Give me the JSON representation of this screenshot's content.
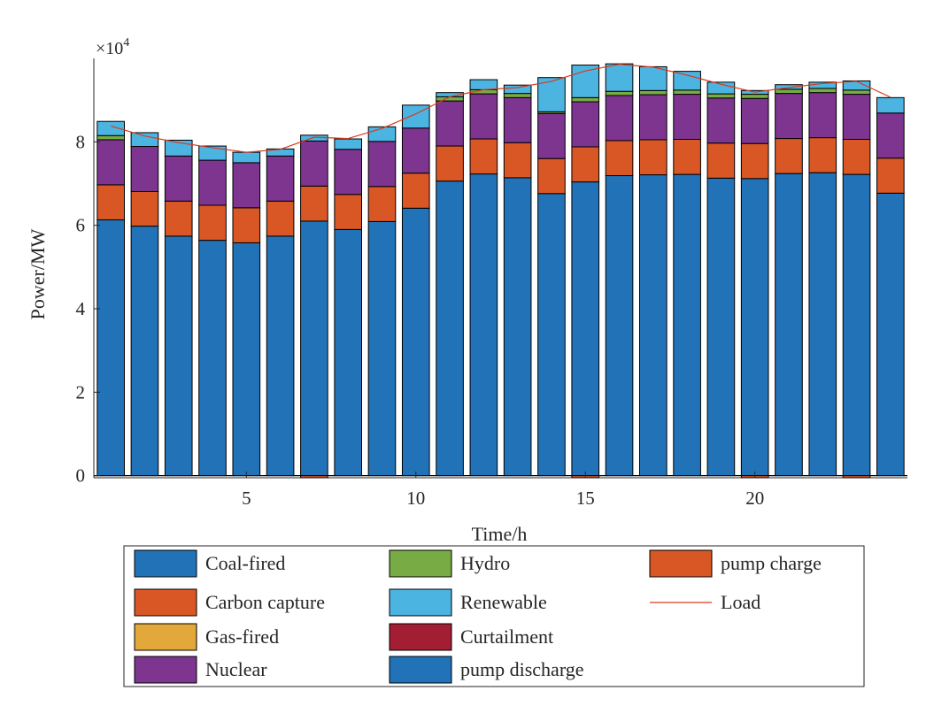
{
  "chart_data": {
    "type": "bar",
    "stacked": true,
    "xlabel": "Time/h",
    "ylabel": "Power/MW",
    "exponent_label": "×10",
    "exponent_power": "4",
    "scale": 10000,
    "xlim": [
      0.5,
      24.5
    ],
    "ylim": [
      -0.05,
      10
    ],
    "xticks": [
      5,
      10,
      15,
      20
    ],
    "yticks": [
      0,
      2,
      4,
      6,
      8
    ],
    "x": [
      1,
      2,
      3,
      4,
      5,
      6,
      7,
      8,
      9,
      10,
      11,
      12,
      13,
      14,
      15,
      16,
      17,
      18,
      19,
      20,
      21,
      22,
      23,
      24
    ],
    "colors": {
      "coal": "#2272b8",
      "carbon": "#d95625",
      "gas": "#e2a83a",
      "nuclear": "#7d3590",
      "hydro": "#78ab44",
      "renewable": "#4cb4e0",
      "curtailment": "#a31e32",
      "pump_discharge": "#2272b8",
      "pump_charge": "#d95625",
      "load": "#d93a20"
    },
    "series": [
      {
        "name": "Coal-fired",
        "key": "coal",
        "values": [
          6.13,
          5.98,
          5.74,
          5.64,
          5.58,
          5.74,
          6.1,
          5.9,
          6.09,
          6.41,
          7.06,
          7.23,
          7.14,
          6.76,
          7.04,
          7.19,
          7.21,
          7.22,
          7.13,
          7.12,
          7.24,
          7.26,
          7.22,
          6.77
        ]
      },
      {
        "name": "Carbon capture",
        "key": "carbon",
        "values": [
          0.84,
          0.83,
          0.84,
          0.84,
          0.84,
          0.84,
          0.84,
          0.84,
          0.84,
          0.84,
          0.84,
          0.84,
          0.84,
          0.84,
          0.84,
          0.84,
          0.84,
          0.84,
          0.84,
          0.84,
          0.84,
          0.84,
          0.84,
          0.84
        ]
      },
      {
        "name": "Gas-fired",
        "key": "gas",
        "values": [
          0,
          0,
          0,
          0,
          0,
          0,
          0,
          0,
          0,
          0,
          0,
          0,
          0,
          0,
          0,
          0,
          0,
          0,
          0,
          0,
          0,
          0,
          0,
          0
        ]
      },
      {
        "name": "Nuclear",
        "key": "nuclear",
        "values": [
          1.08,
          1.08,
          1.08,
          1.08,
          1.08,
          1.08,
          1.08,
          1.08,
          1.08,
          1.08,
          1.08,
          1.08,
          1.08,
          1.08,
          1.08,
          1.08,
          1.08,
          1.08,
          1.08,
          1.08,
          1.08,
          1.08,
          1.08,
          1.08
        ]
      },
      {
        "name": "Hydro",
        "key": "hydro",
        "values": [
          0.1,
          0,
          0,
          0,
          0,
          0,
          0,
          0,
          0,
          0,
          0.1,
          0.1,
          0.1,
          0.04,
          0.1,
          0.1,
          0.1,
          0.1,
          0.1,
          0.1,
          0.1,
          0.1,
          0.1,
          0
        ]
      },
      {
        "name": "Renewable",
        "key": "renewable",
        "values": [
          0.34,
          0.33,
          0.38,
          0.34,
          0.25,
          0.17,
          0.14,
          0.25,
          0.35,
          0.55,
          0.1,
          0.24,
          0.2,
          0.82,
          0.78,
          0.66,
          0.57,
          0.45,
          0.28,
          0.09,
          0.11,
          0.15,
          0.22,
          0.37
        ]
      },
      {
        "name": "Curtailment",
        "key": "curtailment",
        "values": [
          0,
          0,
          0,
          0,
          0,
          0,
          0,
          0,
          0,
          0,
          0,
          0,
          0,
          0,
          0,
          0,
          0,
          0,
          0,
          0,
          0,
          0,
          0,
          0
        ]
      },
      {
        "name": "pump discharge",
        "key": "pump_discharge",
        "values": [
          0,
          0,
          0,
          0,
          0,
          0,
          0,
          0,
          0,
          0,
          0,
          0,
          0,
          0,
          0,
          0,
          0,
          0,
          0,
          0,
          0,
          0,
          0,
          0
        ]
      },
      {
        "name": "pump charge",
        "key": "pump_charge",
        "values": [
          0,
          0,
          0,
          0,
          0,
          0,
          -0.05,
          0,
          0,
          0,
          0,
          0,
          0,
          0,
          -0.05,
          0,
          0,
          0,
          0,
          -0.05,
          0,
          0,
          -0.05,
          0
        ]
      }
    ],
    "load": {
      "name": "Load",
      "values": [
        8.38,
        8.14,
        7.98,
        7.86,
        7.75,
        7.82,
        8.11,
        8.08,
        8.32,
        8.67,
        9.08,
        9.25,
        9.3,
        9.45,
        9.7,
        9.86,
        9.79,
        9.6,
        9.38,
        9.19,
        9.3,
        9.4,
        9.45,
        9.07
      ]
    },
    "legend": {
      "position": "bottom",
      "columns": [
        [
          "Coal-fired",
          "Carbon capture",
          "Gas-fired",
          "Nuclear"
        ],
        [
          "Hydro",
          "Renewable",
          "Curtailment",
          "pump discharge"
        ],
        [
          "pump charge",
          "Load"
        ]
      ]
    }
  }
}
